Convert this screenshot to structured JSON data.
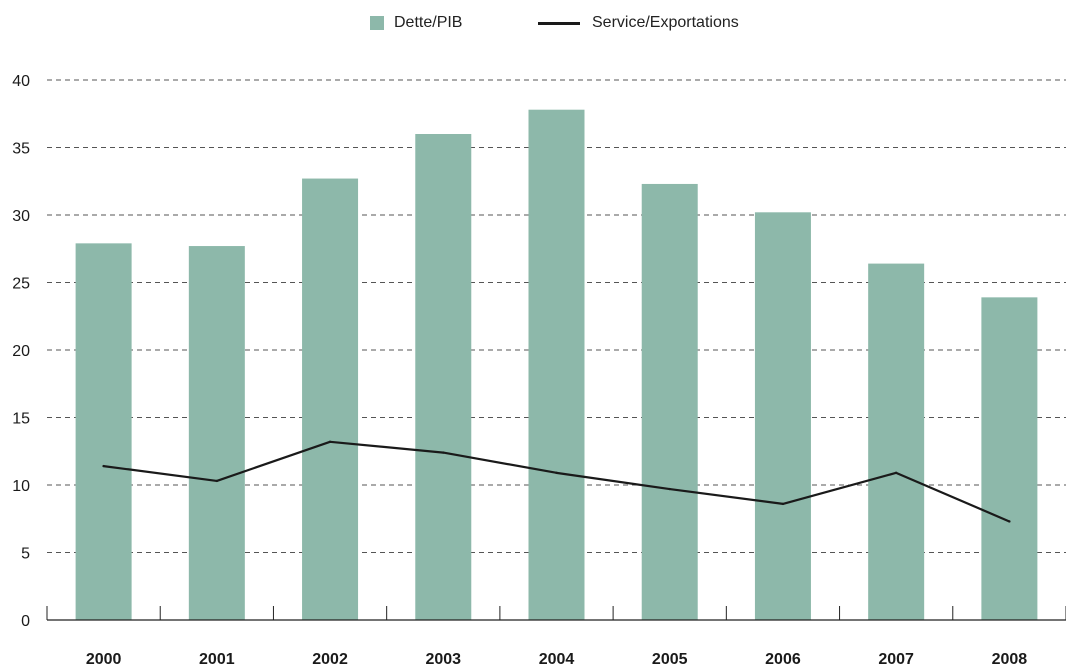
{
  "chart_data": {
    "type": "bar",
    "categories": [
      "2000",
      "2001",
      "2002",
      "2003",
      "2004",
      "2005",
      "2006",
      "2007",
      "2008"
    ],
    "series": [
      {
        "name": "Dette/PIB",
        "type": "bar",
        "color": "#8db8aa",
        "values": [
          27.9,
          27.7,
          32.7,
          36.0,
          37.8,
          32.3,
          30.2,
          26.4,
          23.9
        ]
      },
      {
        "name": "Service/Exportations",
        "type": "line",
        "color": "#1a1a1a",
        "values": [
          11.4,
          10.3,
          13.2,
          12.4,
          10.9,
          9.7,
          8.6,
          10.9,
          7.3
        ]
      }
    ],
    "ylim": [
      0,
      40
    ],
    "yticks": [
      "0",
      "5",
      "10",
      "15",
      "20",
      "25",
      "30",
      "35",
      "40"
    ],
    "grid": "dashed horizontal",
    "legend": "top-center"
  }
}
